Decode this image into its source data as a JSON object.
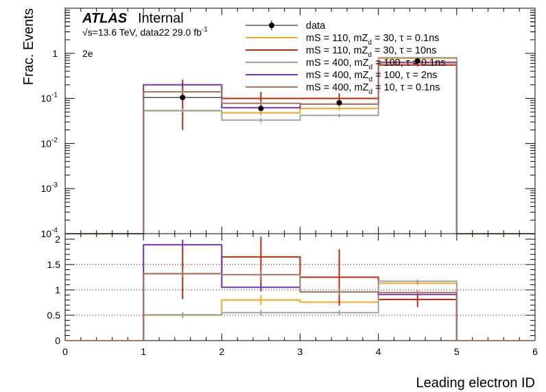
{
  "chart_data": {
    "type": "histogram-ratio",
    "atlas_label": "ATLAS",
    "atlas_status": "Internal",
    "energy_info": "√s=13.6 TeV, data22 29.0 fb",
    "lumi_superscript": "-1",
    "channel": "2e",
    "xlabel": "Leading electron ID",
    "ylabel": "Frac. Events",
    "xlim": [
      0,
      6
    ],
    "ylim_top_log": [
      0.0001,
      10
    ],
    "ylim_ratio": [
      0,
      2
    ],
    "x_ticks": [
      "0",
      "1",
      "2",
      "3",
      "4",
      "5",
      "6"
    ],
    "y_ticks_top": [
      {
        "v": 0.0001,
        "base": "10",
        "exp": "-4"
      },
      {
        "v": 0.001,
        "base": "10",
        "exp": "-3"
      },
      {
        "v": 0.01,
        "base": "10",
        "exp": "-2"
      },
      {
        "v": 0.1,
        "base": "10",
        "exp": "-1"
      },
      {
        "v": 1,
        "base": "1",
        "exp": ""
      }
    ],
    "y_ticks_ratio": [
      {
        "v": 0,
        "label": "0"
      },
      {
        "v": 0.5,
        "label": "0.5"
      },
      {
        "v": 1,
        "label": "1"
      },
      {
        "v": 1.5,
        "label": "1.5"
      },
      {
        "v": 2,
        "label": "2"
      }
    ],
    "bin_edges": [
      0,
      1,
      2,
      3,
      4,
      5,
      6
    ],
    "data": {
      "name": "data",
      "color": "#000000",
      "x": [
        1.5,
        2.5,
        3.5,
        4.5
      ],
      "y": [
        0.105,
        0.06,
        0.08,
        0.68
      ],
      "yerr": [
        0.0,
        0.0,
        0.0,
        0.0
      ]
    },
    "series": [
      {
        "name": "mS = 110, mZ",
        "sub": "d",
        "tail": " = 30, τ = 0.1ns",
        "color": "#f5a623",
        "values": [
          0,
          0.053,
          0.048,
          0.06,
          0.77,
          0
        ],
        "err": [
          0,
          0.006,
          0.006,
          0.006,
          0.03,
          0
        ],
        "ratio": [
          0,
          0.5,
          0.8,
          0.76,
          1.13,
          0
        ],
        "ratio_err": [
          0,
          0.06,
          0.1,
          0.08,
          0.04,
          0
        ]
      },
      {
        "name": "mS = 110, mZ",
        "sub": "d",
        "tail": " = 30, τ = 10ns",
        "color": "#c0290b",
        "values": [
          0,
          0.14,
          0.1,
          0.1,
          0.55,
          0
        ],
        "err": [
          0,
          0.12,
          0.04,
          0.03,
          0.04,
          0
        ],
        "ratio": [
          0,
          1.32,
          1.65,
          1.25,
          0.81,
          0
        ],
        "ratio_err": [
          0,
          0.5,
          0.65,
          0.55,
          0.15,
          0
        ]
      },
      {
        "name": "mS = 400, mZ",
        "sub": "d",
        "tail": " = 100, τ = 0.1ns",
        "color": "#98a5a6",
        "values": [
          0,
          0.054,
          0.033,
          0.042,
          0.8,
          0
        ],
        "err": [
          0,
          0.005,
          0.004,
          0.004,
          0.02,
          0
        ],
        "ratio": [
          0,
          0.51,
          0.55,
          0.55,
          1.17,
          0
        ],
        "ratio_err": [
          0,
          0.05,
          0.06,
          0.05,
          0.04,
          0
        ]
      },
      {
        "name": "mS = 400, mZ",
        "sub": "d",
        "tail": " = 100, τ = 2ns",
        "color": "#7f2fae",
        "values": [
          0,
          0.2,
          0.062,
          0.075,
          0.62,
          0
        ],
        "err": [
          0,
          0.02,
          0.008,
          0.008,
          0.03,
          0
        ],
        "ratio": [
          0,
          1.89,
          1.05,
          0.96,
          0.91,
          0
        ],
        "ratio_err": [
          0,
          0.1,
          0.08,
          0.07,
          0.04,
          0
        ]
      },
      {
        "name": "mS = 400, mZ",
        "sub": "d",
        "tail": " = 10, τ = 0.1ns",
        "color": "#a87560",
        "values": [
          0,
          0.14,
          0.078,
          0.075,
          0.64,
          0
        ],
        "err": [
          0,
          0.01,
          0.008,
          0.008,
          0.03,
          0
        ],
        "ratio": [
          0,
          1.32,
          1.3,
          0.96,
          0.95,
          0
        ],
        "ratio_err": [
          0,
          0.08,
          0.08,
          0.07,
          0.04,
          0
        ]
      }
    ]
  }
}
